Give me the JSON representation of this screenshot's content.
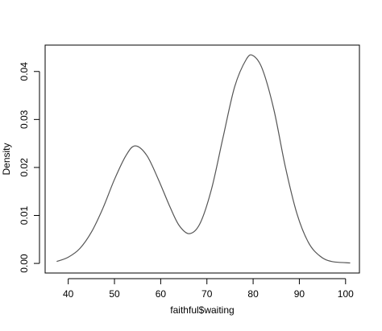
{
  "chart_data": {
    "type": "line",
    "title": "",
    "xlabel": "faithful$waiting",
    "ylabel": "Density",
    "xlim": [
      35,
      103
    ],
    "ylim": [
      -0.002,
      0.0455
    ],
    "x_ticks": [
      40,
      50,
      60,
      70,
      80,
      90,
      100
    ],
    "y_ticks": [
      0.0,
      0.01,
      0.02,
      0.03,
      0.04
    ],
    "x_tick_labels": [
      "40",
      "50",
      "60",
      "70",
      "80",
      "90",
      "100"
    ],
    "y_tick_labels": [
      "0.00",
      "0.01",
      "0.02",
      "0.03",
      "0.04"
    ],
    "grid": false,
    "legend": "none",
    "line_color": "#555555",
    "series": [
      {
        "x": [
          37.5,
          40,
          42.5,
          45,
          47.5,
          50,
          52.5,
          54.5,
          57,
          59.5,
          62,
          64,
          66.2,
          68.5,
          71,
          73.5,
          76,
          78.5,
          80,
          82,
          84.5,
          87,
          89.5,
          92,
          94.5,
          97,
          101
        ],
        "values": [
          0.0004,
          0.0013,
          0.0031,
          0.0065,
          0.0115,
          0.0175,
          0.0225,
          0.0245,
          0.0225,
          0.0175,
          0.0118,
          0.0079,
          0.0062,
          0.0083,
          0.0155,
          0.0263,
          0.0368,
          0.0425,
          0.0433,
          0.0405,
          0.032,
          0.02,
          0.0103,
          0.0043,
          0.0015,
          0.0004,
          0.0001
        ]
      }
    ]
  }
}
